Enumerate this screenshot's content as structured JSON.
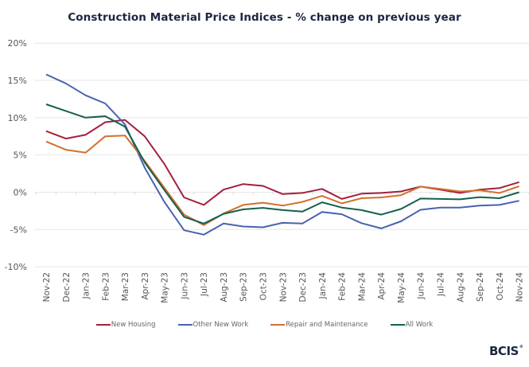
{
  "chart_data": {
    "type": "line",
    "title": "Construction Material Price Indices - % change on previous year",
    "xlabel": "",
    "ylabel": "",
    "ylim": [
      -10,
      20
    ],
    "yticks": [
      20,
      15,
      10,
      5,
      0,
      -5,
      -10
    ],
    "ytick_labels": [
      "20%",
      "15%",
      "10%",
      "5%",
      "0%",
      "-5%",
      "-10%"
    ],
    "grid": true,
    "legend_position": "bottom",
    "categories": [
      "Nov-22",
      "Dec-22",
      "Jan-23",
      "Feb-23",
      "Mar-23",
      "Apr-23",
      "May-23",
      "Jun-23",
      "Jul-23",
      "Aug-23",
      "Sep-23",
      "Oct-23",
      "Nov-23",
      "Dec-23",
      "Jan-24",
      "Feb-24",
      "Mar-24",
      "Apr-24",
      "May-24",
      "Jun-24",
      "Jul-24",
      "Aug-24",
      "Sep-24",
      "Oct-24",
      "Nov-24"
    ],
    "series": [
      {
        "name": "New Housing",
        "color": "#A3203F",
        "values": [
          8.2,
          7.2,
          7.7,
          9.4,
          9.7,
          7.5,
          3.8,
          -0.7,
          -1.7,
          0.35,
          1.1,
          0.85,
          -0.25,
          -0.1,
          0.45,
          -0.9,
          -0.2,
          -0.1,
          0.1,
          0.75,
          0.35,
          -0.1,
          0.35,
          0.55,
          1.35
        ]
      },
      {
        "name": "Other New Work",
        "color": "#4A62AE",
        "values": [
          15.8,
          14.6,
          13.0,
          11.9,
          9.1,
          3.3,
          -1.3,
          -5.1,
          -5.7,
          -4.2,
          -4.6,
          -4.7,
          -4.1,
          -4.2,
          -2.65,
          -2.95,
          -4.15,
          -4.85,
          -3.9,
          -2.35,
          -2.05,
          -2.05,
          -1.8,
          -1.7,
          -1.15
        ]
      },
      {
        "name": "Repair and Maintenance",
        "color": "#D0722F",
        "values": [
          6.8,
          5.7,
          5.3,
          7.5,
          7.6,
          4.2,
          0.6,
          -3.0,
          -4.4,
          -2.85,
          -1.7,
          -1.4,
          -1.8,
          -1.3,
          -0.5,
          -1.5,
          -0.8,
          -0.7,
          -0.4,
          0.75,
          0.45,
          0.1,
          0.25,
          -0.1,
          0.8
        ]
      },
      {
        "name": "All Work",
        "color": "#16604F",
        "values": [
          11.8,
          10.9,
          10.0,
          10.2,
          8.8,
          4.0,
          0.3,
          -3.3,
          -4.2,
          -2.9,
          -2.3,
          -2.1,
          -2.4,
          -2.6,
          -1.35,
          -2.05,
          -2.4,
          -3.0,
          -2.25,
          -0.85,
          -0.9,
          -0.95,
          -0.65,
          -0.8,
          0.0
        ]
      }
    ]
  },
  "branding": {
    "logo_text": "BCIS",
    "logo_mark": "®"
  }
}
